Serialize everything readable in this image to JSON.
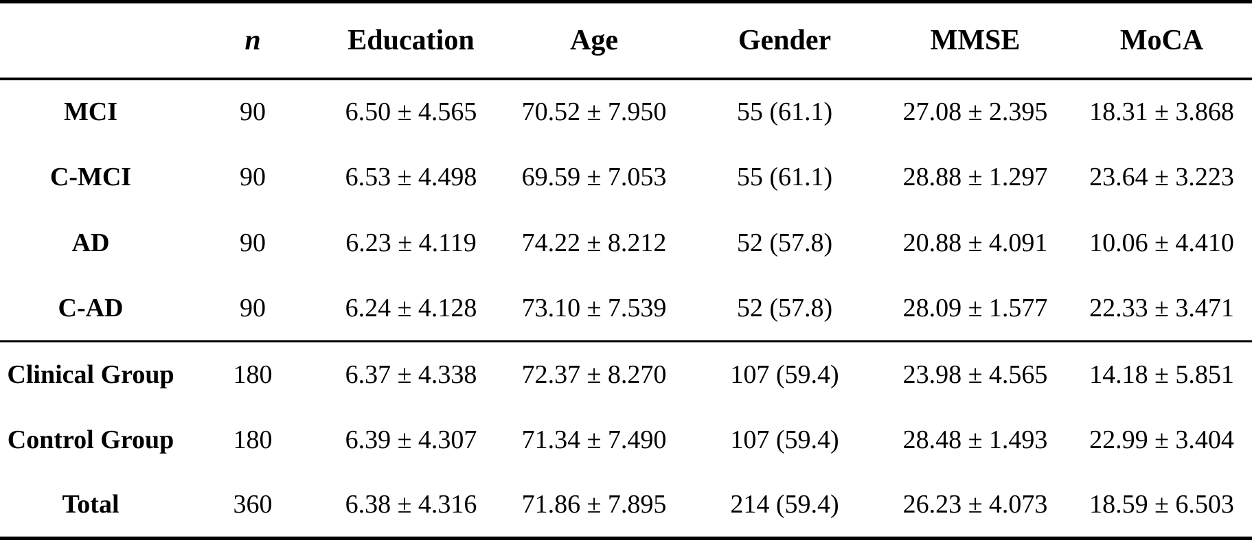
{
  "table": {
    "header": {
      "row_label": "",
      "n": "n",
      "education": "Education",
      "age": "Age",
      "gender": "Gender",
      "mmse": "MMSE",
      "moca": "MoCA"
    },
    "rows": [
      {
        "label": "MCI",
        "n": "90",
        "education": "6.50 ± 4.565",
        "age": "70.52 ± 7.950",
        "gender": "55 (61.1)",
        "mmse": "27.08 ± 2.395",
        "moca": "18.31 ± 3.868"
      },
      {
        "label": "C-MCI",
        "n": "90",
        "education": "6.53 ± 4.498",
        "age": "69.59 ± 7.053",
        "gender": "55 (61.1)",
        "mmse": "28.88 ± 1.297",
        "moca": "23.64 ± 3.223"
      },
      {
        "label": "AD",
        "n": "90",
        "education": "6.23 ± 4.119",
        "age": "74.22 ± 8.212",
        "gender": "52 (57.8)",
        "mmse": "20.88 ± 4.091",
        "moca": "10.06 ± 4.410"
      },
      {
        "label": "C-AD",
        "n": "90",
        "education": "6.24 ± 4.128",
        "age": "73.10 ± 7.539",
        "gender": "52 (57.8)",
        "mmse": "28.09 ± 1.577",
        "moca": "22.33 ± 3.471"
      },
      {
        "label": "Clinical Group",
        "n": "180",
        "education": "6.37 ± 4.338",
        "age": "72.37 ± 8.270",
        "gender": "107 (59.4)",
        "mmse": "23.98 ± 4.565",
        "moca": "14.18 ± 5.851"
      },
      {
        "label": "Control Group",
        "n": "180",
        "education": "6.39 ± 4.307",
        "age": "71.34 ± 7.490",
        "gender": "107 (59.4)",
        "mmse": "28.48 ± 1.493",
        "moca": "22.99 ± 3.404"
      },
      {
        "label": "Total",
        "n": "360",
        "education": "6.38 ± 4.316",
        "age": "71.86 ± 7.895",
        "gender": "214 (59.4)",
        "mmse": "26.23 ± 4.073",
        "moca": "18.59 ± 6.503"
      }
    ],
    "colors": {
      "text": "#000000",
      "background": "#ffffff",
      "rule": "#000000"
    }
  }
}
